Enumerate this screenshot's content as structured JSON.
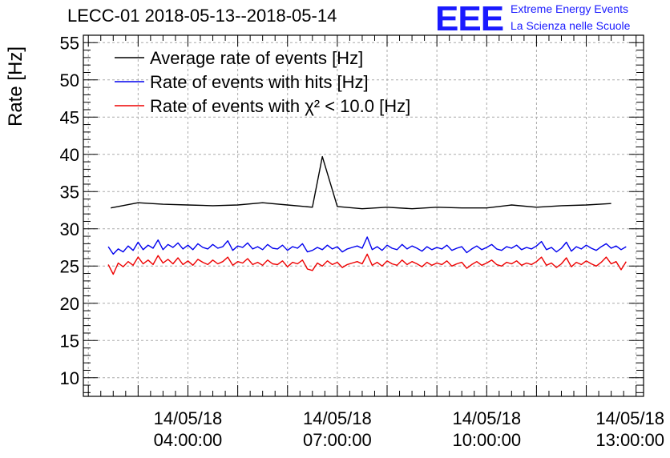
{
  "header": {
    "title": "LECC-01 2018-05-13--2018-05-14",
    "logo_text": "EEE",
    "brand_line1": "Extreme Energy Events",
    "brand_line2": "La Scienza nelle Scuole"
  },
  "colors": {
    "average": "#000000",
    "hits": "#0000ee",
    "chi2": "#ee0000",
    "grid": "#aaaaaa",
    "brand": "#1a1aff"
  },
  "chart_data": {
    "type": "line",
    "ylabel": "Rate [Hz]",
    "ylim": [
      7.5,
      56
    ],
    "yticks": [
      10,
      15,
      20,
      25,
      30,
      35,
      40,
      45,
      50,
      55
    ],
    "xlim_hours": [
      1.9,
      13.15
    ],
    "xticks": [
      {
        "hour": 4,
        "date": "14/05/18",
        "time": "04:00:00"
      },
      {
        "hour": 7,
        "date": "14/05/18",
        "time": "07:00:00"
      },
      {
        "hour": 10,
        "date": "14/05/18",
        "time": "10:00:00"
      },
      {
        "hour": 13,
        "date": "14/05/18",
        "time": "13:00:00"
      }
    ],
    "grid": true,
    "legend_position": "top-left",
    "legend": [
      {
        "name": "Average rate of events [Hz]",
        "color_key": "average"
      },
      {
        "name": "Rate of events with hits [Hz]",
        "color_key": "hits"
      },
      {
        "name": "Rate of events with χ² < 10.0 [Hz]",
        "color_key": "chi2"
      }
    ],
    "series": [
      {
        "name": "Average rate of events [Hz]",
        "color_key": "average",
        "x": [
          2.45,
          3.0,
          3.5,
          4.0,
          4.5,
          5.0,
          5.5,
          6.0,
          6.5,
          6.7,
          7.0,
          7.5,
          8.0,
          8.5,
          9.0,
          9.5,
          10.0,
          10.5,
          11.0,
          11.5,
          12.0,
          12.5
        ],
        "y": [
          32.8,
          33.5,
          33.3,
          33.2,
          33.1,
          33.2,
          33.5,
          33.2,
          32.9,
          39.7,
          33.0,
          32.7,
          32.9,
          32.7,
          32.9,
          32.8,
          32.8,
          33.2,
          32.9,
          33.1,
          33.2,
          33.4
        ]
      },
      {
        "name": "Rate of events with hits [Hz]",
        "color_key": "hits",
        "x": [
          2.4,
          2.5,
          2.6,
          2.7,
          2.8,
          2.9,
          3.0,
          3.1,
          3.2,
          3.3,
          3.4,
          3.5,
          3.6,
          3.7,
          3.8,
          3.9,
          4.0,
          4.1,
          4.2,
          4.3,
          4.4,
          4.5,
          4.6,
          4.7,
          4.8,
          4.9,
          5.0,
          5.1,
          5.2,
          5.3,
          5.4,
          5.5,
          5.6,
          5.7,
          5.8,
          5.9,
          6.0,
          6.1,
          6.2,
          6.3,
          6.4,
          6.5,
          6.6,
          6.7,
          6.8,
          6.9,
          7.0,
          7.1,
          7.2,
          7.3,
          7.4,
          7.5,
          7.6,
          7.7,
          7.8,
          7.9,
          8.0,
          8.1,
          8.2,
          8.3,
          8.4,
          8.5,
          8.6,
          8.7,
          8.8,
          8.9,
          9.0,
          9.1,
          9.2,
          9.3,
          9.4,
          9.5,
          9.6,
          9.7,
          9.8,
          9.9,
          10.0,
          10.1,
          10.2,
          10.3,
          10.4,
          10.5,
          10.6,
          10.7,
          10.8,
          10.9,
          11.0,
          11.1,
          11.2,
          11.3,
          11.4,
          11.5,
          11.6,
          11.7,
          11.8,
          11.9,
          12.0,
          12.1,
          12.2,
          12.3,
          12.4,
          12.5,
          12.6,
          12.7,
          12.8
        ],
        "y": [
          27.6,
          26.6,
          27.3,
          26.9,
          27.7,
          27.1,
          28.2,
          27.2,
          27.8,
          27.4,
          28.5,
          27.2,
          27.9,
          27.5,
          28.1,
          27.3,
          27.8,
          27.2,
          28.0,
          27.5,
          27.3,
          27.9,
          27.4,
          27.6,
          28.4,
          27.1,
          27.7,
          27.5,
          28.1,
          27.3,
          27.6,
          27.2,
          27.9,
          27.4,
          27.3,
          27.8,
          27.1,
          27.6,
          27.4,
          28.0,
          26.9,
          27.1,
          27.5,
          27.2,
          27.8,
          27.3,
          27.6,
          26.9,
          27.3,
          27.5,
          27.7,
          27.4,
          28.9,
          27.2,
          27.6,
          27.1,
          27.8,
          27.4,
          27.2,
          27.9,
          27.3,
          27.7,
          27.4,
          27.0,
          27.6,
          27.2,
          27.5,
          27.3,
          27.8,
          27.1,
          27.4,
          27.6,
          26.8,
          27.3,
          27.7,
          27.2,
          27.5,
          27.9,
          27.3,
          27.1,
          27.6,
          27.4,
          27.8,
          27.2,
          27.5,
          27.3,
          27.7,
          28.3,
          27.2,
          27.5,
          26.9,
          27.4,
          28.2,
          27.0,
          27.6,
          27.3,
          27.8,
          27.4,
          27.1,
          27.6,
          28.0,
          27.4,
          27.7,
          27.2,
          27.6
        ]
      },
      {
        "name": "Rate of events with χ² < 10.0 [Hz]",
        "color_key": "chi2",
        "x": [
          2.4,
          2.5,
          2.6,
          2.7,
          2.8,
          2.9,
          3.0,
          3.1,
          3.2,
          3.3,
          3.4,
          3.5,
          3.6,
          3.7,
          3.8,
          3.9,
          4.0,
          4.1,
          4.2,
          4.3,
          4.4,
          4.5,
          4.6,
          4.7,
          4.8,
          4.9,
          5.0,
          5.1,
          5.2,
          5.3,
          5.4,
          5.5,
          5.6,
          5.7,
          5.8,
          5.9,
          6.0,
          6.1,
          6.2,
          6.3,
          6.4,
          6.5,
          6.6,
          6.7,
          6.8,
          6.9,
          7.0,
          7.1,
          7.2,
          7.3,
          7.4,
          7.5,
          7.6,
          7.7,
          7.8,
          7.9,
          8.0,
          8.1,
          8.2,
          8.3,
          8.4,
          8.5,
          8.6,
          8.7,
          8.8,
          8.9,
          9.0,
          9.1,
          9.2,
          9.3,
          9.4,
          9.5,
          9.6,
          9.7,
          9.8,
          9.9,
          10.0,
          10.1,
          10.2,
          10.3,
          10.4,
          10.5,
          10.6,
          10.7,
          10.8,
          10.9,
          11.0,
          11.1,
          11.2,
          11.3,
          11.4,
          11.5,
          11.6,
          11.7,
          11.8,
          11.9,
          12.0,
          12.1,
          12.2,
          12.3,
          12.4,
          12.5,
          12.6,
          12.7,
          12.8
        ],
        "y": [
          25.2,
          23.9,
          25.4,
          24.9,
          25.6,
          25.1,
          26.2,
          25.3,
          25.8,
          25.2,
          26.4,
          25.4,
          25.9,
          25.3,
          26.1,
          25.2,
          25.7,
          25.1,
          25.9,
          25.5,
          25.2,
          25.8,
          25.3,
          25.6,
          26.2,
          25.1,
          25.6,
          25.4,
          26.0,
          25.2,
          25.5,
          25.1,
          25.8,
          25.3,
          25.2,
          25.7,
          24.9,
          25.5,
          25.3,
          25.8,
          24.6,
          24.4,
          25.4,
          25.0,
          25.7,
          25.2,
          25.5,
          24.8,
          25.2,
          25.4,
          25.6,
          25.3,
          26.6,
          25.1,
          25.5,
          25.0,
          25.7,
          25.3,
          25.1,
          25.8,
          25.2,
          25.6,
          25.3,
          24.9,
          25.5,
          25.1,
          25.4,
          25.2,
          25.7,
          25.0,
          25.3,
          25.5,
          24.7,
          25.2,
          25.6,
          25.1,
          25.4,
          25.8,
          25.2,
          25.0,
          25.5,
          25.3,
          25.7,
          25.1,
          25.4,
          25.2,
          25.6,
          26.2,
          25.1,
          25.4,
          24.8,
          25.3,
          26.1,
          24.9,
          25.5,
          25.2,
          25.7,
          25.3,
          25.0,
          25.5,
          26.2,
          25.3,
          25.6,
          24.5,
          25.6
        ]
      }
    ]
  }
}
